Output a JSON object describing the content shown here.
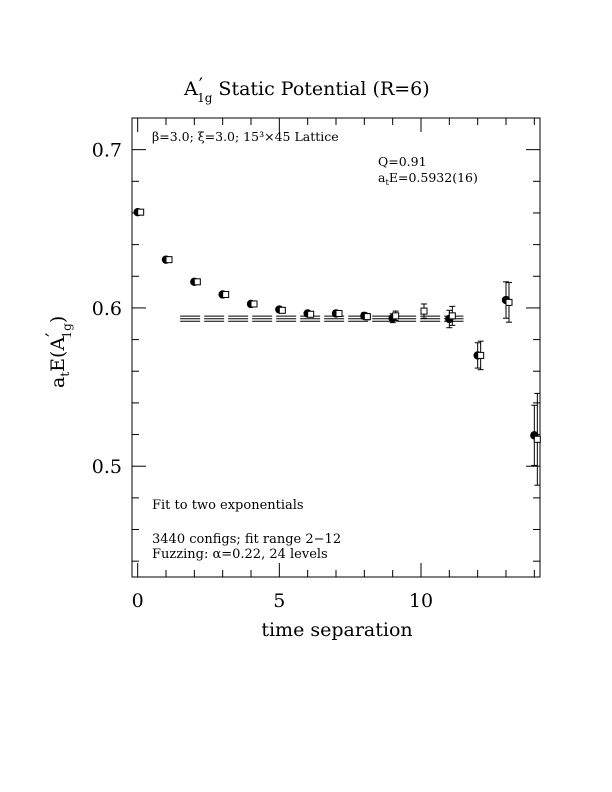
{
  "chart_data": {
    "type": "scatter",
    "title_main": "A",
    "title_prime": "′",
    "title_sub": "1g",
    "title_rest": " Static Potential (R=6)",
    "xlabel": "time separation",
    "ylabel_main": "a",
    "ylabel_sub": "t",
    "ylabel_E": "E(A",
    "ylabel_prime": "′",
    "ylabel_sub2": "1g",
    "ylabel_close": ")",
    "xlim": [
      -0.2,
      14.2
    ],
    "ylim": [
      0.43,
      0.72
    ],
    "x_ticks": [
      0,
      5,
      10
    ],
    "x_tick_labels": [
      "0",
      "5",
      "10"
    ],
    "y_ticks": [
      0.5,
      0.6,
      0.7
    ],
    "y_tick_labels": [
      "0.5",
      "0.6",
      "0.7"
    ],
    "x_minor_step": 1,
    "y_minor_step": 0.02,
    "lattice_label": "β=3.0; ξ=3.0; 15³×45 Lattice",
    "fit_q": "Q=0.91",
    "fit_energy_main": "a",
    "fit_energy_sub": "t",
    "fit_energy_rest": "E=0.5932(16)",
    "note_fit": "Fit to two exponentials",
    "note_configs": "3440 configs; fit range 2−12",
    "note_fuzzing": "Fuzzing: α=0.22, 24 levels",
    "series": [
      {
        "marker": "filled-circle",
        "points": [
          {
            "x": 0,
            "y": 0.6605,
            "err": 0.001
          },
          {
            "x": 1,
            "y": 0.6305,
            "err": 0.0012
          },
          {
            "x": 2,
            "y": 0.6165,
            "err": 0.0012
          },
          {
            "x": 3,
            "y": 0.6085,
            "err": 0.0012
          },
          {
            "x": 4,
            "y": 0.6025,
            "err": 0.0012
          },
          {
            "x": 5,
            "y": 0.599,
            "err": 0.0013
          },
          {
            "x": 6,
            "y": 0.5965,
            "err": 0.0015
          },
          {
            "x": 7,
            "y": 0.5965,
            "err": 0.0018
          },
          {
            "x": 8,
            "y": 0.595,
            "err": 0.002
          },
          {
            "x": 9,
            "y": 0.5935,
            "err": 0.0028
          },
          {
            "x": 11,
            "y": 0.593,
            "err": 0.0055
          },
          {
            "x": 12,
            "y": 0.57,
            "err": 0.008
          },
          {
            "x": 13,
            "y": 0.605,
            "err": 0.0115
          },
          {
            "x": 14,
            "y": 0.5195,
            "err": 0.019
          }
        ]
      },
      {
        "marker": "open-square",
        "points": [
          {
            "x": 0,
            "y": 0.6605,
            "err": 0.001
          },
          {
            "x": 1,
            "y": 0.6305,
            "err": 0.0012
          },
          {
            "x": 2,
            "y": 0.6165,
            "err": 0.0012
          },
          {
            "x": 3,
            "y": 0.6085,
            "err": 0.0012
          },
          {
            "x": 4,
            "y": 0.6025,
            "err": 0.0012
          },
          {
            "x": 5,
            "y": 0.5985,
            "err": 0.0013
          },
          {
            "x": 6,
            "y": 0.596,
            "err": 0.0015
          },
          {
            "x": 7,
            "y": 0.5965,
            "err": 0.0018
          },
          {
            "x": 8,
            "y": 0.5945,
            "err": 0.002
          },
          {
            "x": 9,
            "y": 0.595,
            "err": 0.003
          },
          {
            "x": 10,
            "y": 0.598,
            "err": 0.0045
          },
          {
            "x": 11,
            "y": 0.595,
            "err": 0.006
          },
          {
            "x": 12,
            "y": 0.57,
            "err": 0.009
          },
          {
            "x": 13,
            "y": 0.6035,
            "err": 0.0125
          },
          {
            "x": 14,
            "y": 0.517,
            "err": 0.029
          }
        ]
      }
    ],
    "fit": {
      "x_range": [
        1.5,
        11.5
      ],
      "center": 0.5932,
      "error": 0.0016
    }
  }
}
